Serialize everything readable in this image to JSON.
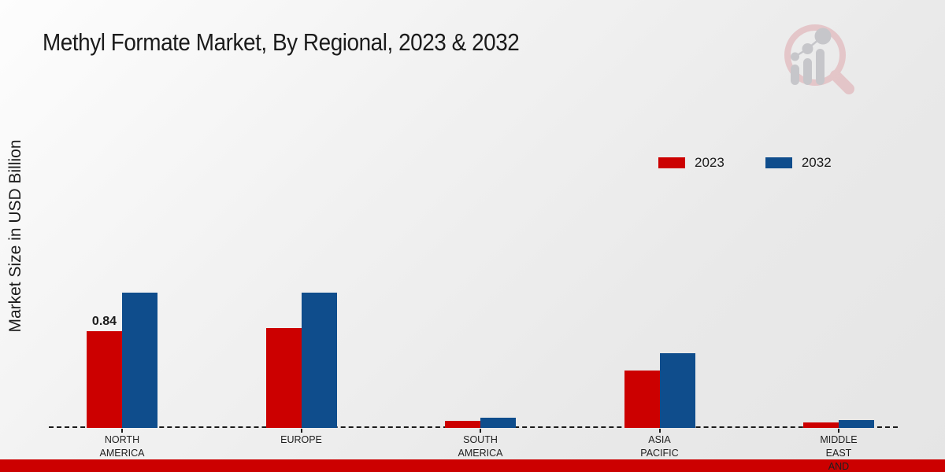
{
  "title": "Methyl Formate Market, By Regional, 2023 & 2032",
  "y_axis_label": "Market Size in USD Billion",
  "legend": {
    "items": [
      {
        "label": "2023",
        "color": "#cc0000"
      },
      {
        "label": "2032",
        "color": "#0f4d8c"
      }
    ]
  },
  "footer_banner": {
    "color": "#cc0000"
  },
  "colors": {
    "accent_red": "#cc0000",
    "accent_blue": "#0f4d8c",
    "text": "#1b1b1b"
  },
  "chart_data": {
    "type": "bar",
    "title": "Methyl Formate Market, By Regional, 2023 & 2032",
    "xlabel": "",
    "ylabel": "Market Size in USD Billion",
    "categories": [
      "North America",
      "Europe",
      "South America",
      "Asia Pacific",
      "Middle East and"
    ],
    "category_label_lines": [
      [
        "NORTH",
        "AMERICA"
      ],
      [
        "EUROPE"
      ],
      [
        "SOUTH",
        "AMERICA"
      ],
      [
        "ASIA",
        "PACIFIC"
      ],
      [
        "MIDDLE",
        "EAST",
        "AND"
      ]
    ],
    "series": [
      {
        "name": "2023",
        "color": "#cc0000",
        "values": [
          0.84,
          0.87,
          0.06,
          0.5,
          0.05
        ]
      },
      {
        "name": "2032",
        "color": "#0f4d8c",
        "values": [
          1.18,
          1.18,
          0.09,
          0.65,
          0.07
        ]
      }
    ],
    "data_labels": [
      {
        "series_index": 0,
        "category_index": 0,
        "text": "0.84"
      }
    ],
    "ylim": [
      0,
      1.5
    ],
    "grid": false,
    "legend_position": "upper right",
    "axis_line_style": "dashed baseline only, no y-axis ticks"
  }
}
